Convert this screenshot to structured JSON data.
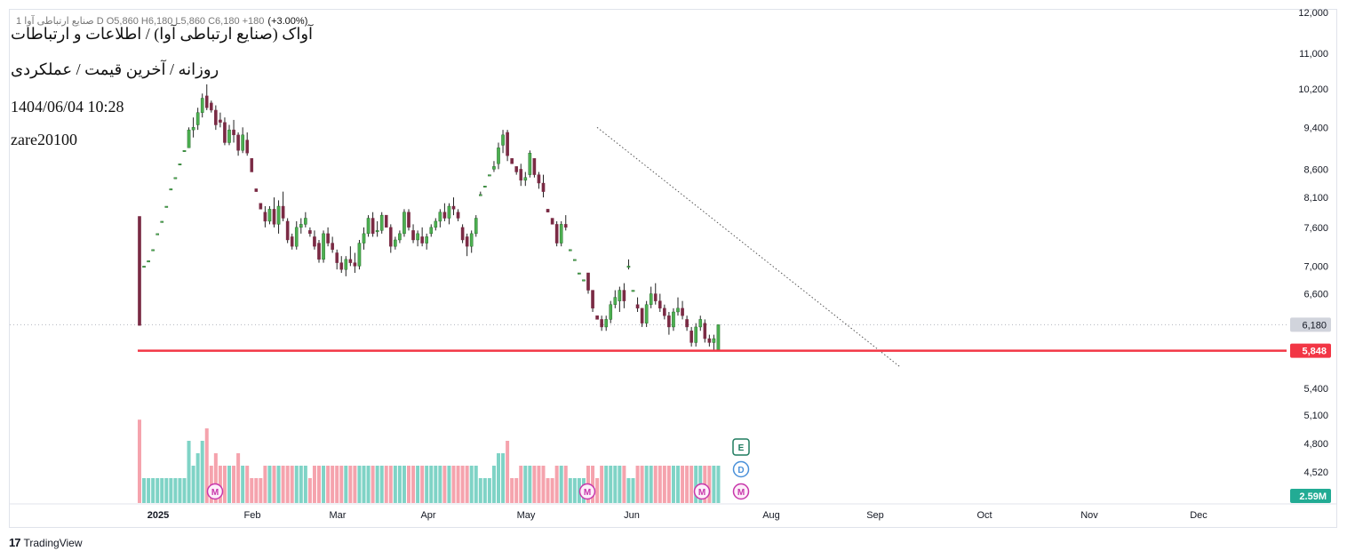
{
  "header": {
    "ohlc_text": "1 صنایع ارتباطی آوا D O5,860 H6,180 L5,860 C6,180 +180",
    "change_text": "(+3.00%)",
    "title_line1": "آواک (صنایع ارتباطی آوا) / اطلاعات و ارتباطات",
    "title_line2": "روزانه / آخرین قیمت / عملکردی",
    "datetime": "1404/06/04 10:28",
    "author": "zare20100"
  },
  "branding": {
    "logo_text": "17",
    "name": "TradingView"
  },
  "colors": {
    "up": "#26a69a",
    "down": "#7a2a44",
    "up_candle": "#4caf50",
    "vol_up": "#7fd3c6",
    "vol_down": "#f5a3ad",
    "support": "#f23645",
    "last_price_bg": "#d1d4dc",
    "volume_badge": "#22ab94",
    "marker_m": "#c837ab",
    "marker_e": "#1e7b5f",
    "marker_d": "#4a90d9"
  },
  "chart_data": {
    "type": "candlestick",
    "title": "آواک (صنایع ارتباطی آوا) / اطلاعات و ارتباطات",
    "y_axis": {
      "scale": "log",
      "ylim": [
        4200,
        12200
      ],
      "ticks": [
        "12,000",
        "11,000",
        "10,200",
        "9,400",
        "8,600",
        "8,100",
        "7,600",
        "7,000",
        "6,600",
        "6,180",
        "5,848",
        "5,400",
        "5,100",
        "4,800",
        "4,520"
      ],
      "tick_values": [
        12000,
        11000,
        10200,
        9400,
        8600,
        8100,
        7600,
        7000,
        6600,
        6180,
        5848,
        5400,
        5100,
        4800,
        4520
      ]
    },
    "x_axis": {
      "labels": [
        "2025",
        "Feb",
        "Mar",
        "Apr",
        "May",
        "Jun",
        "Aug",
        "Sep",
        "Oct",
        "Nov",
        "Dec"
      ]
    },
    "last_price": {
      "value": 6180,
      "label": "6,180"
    },
    "support_line": {
      "value": 5848,
      "label": "5,848"
    },
    "volume_label": "2.59M",
    "candles": [
      [
        7780,
        7780,
        6170,
        6170,
        10
      ],
      [
        7000,
        7000,
        7000,
        7000,
        2
      ],
      [
        7080,
        7080,
        7080,
        7080,
        2
      ],
      [
        7250,
        7250,
        7250,
        7250,
        2
      ],
      [
        7500,
        7500,
        7500,
        7500,
        2
      ],
      [
        7700,
        7700,
        7700,
        7700,
        2
      ],
      [
        7950,
        7950,
        7950,
        7950,
        2
      ],
      [
        8250,
        8250,
        8250,
        8250,
        2
      ],
      [
        8450,
        8450,
        8450,
        8450,
        2
      ],
      [
        8700,
        8700,
        8700,
        8700,
        2
      ],
      [
        8950,
        8950,
        8950,
        8950,
        2
      ],
      [
        9000,
        9400,
        9000,
        9350,
        5
      ],
      [
        9350,
        9600,
        9200,
        9400,
        3
      ],
      [
        9450,
        9800,
        9350,
        9700,
        4
      ],
      [
        9700,
        10100,
        9600,
        10000,
        5
      ],
      [
        10050,
        10300,
        9750,
        9800,
        6
      ],
      [
        9900,
        9950,
        9700,
        9750,
        3
      ],
      [
        9750,
        9850,
        9350,
        9450,
        4
      ],
      [
        9550,
        9700,
        9400,
        9500,
        3
      ],
      [
        9500,
        9600,
        9050,
        9100,
        3
      ],
      [
        9100,
        9450,
        9050,
        9350,
        3
      ],
      [
        9350,
        9550,
        9100,
        9250,
        3
      ],
      [
        9250,
        9300,
        8850,
        8950,
        4
      ],
      [
        8950,
        9400,
        8900,
        9250,
        3
      ],
      [
        9150,
        9300,
        8850,
        8900,
        3
      ],
      [
        8800,
        8800,
        8550,
        8550,
        2
      ],
      [
        8250,
        8250,
        8200,
        8200,
        2
      ],
      [
        8000,
        8000,
        7900,
        7900,
        2
      ],
      [
        7850,
        7950,
        7600,
        7700,
        3
      ],
      [
        7700,
        7950,
        7650,
        7900,
        3
      ],
      [
        7900,
        8100,
        7600,
        7650,
        3
      ],
      [
        7650,
        8050,
        7500,
        7950,
        3
      ],
      [
        7950,
        8200,
        7700,
        7750,
        3
      ],
      [
        7700,
        7750,
        7350,
        7400,
        3
      ],
      [
        7450,
        7500,
        7250,
        7300,
        3
      ],
      [
        7300,
        7700,
        7250,
        7600,
        3
      ],
      [
        7600,
        7750,
        7500,
        7650,
        3
      ],
      [
        7650,
        7850,
        7600,
        7750,
        3
      ],
      [
        7550,
        7600,
        7450,
        7500,
        2
      ],
      [
        7450,
        7550,
        7250,
        7300,
        3
      ],
      [
        7350,
        7400,
        7050,
        7100,
        3
      ],
      [
        7100,
        7550,
        7050,
        7500,
        3
      ],
      [
        7500,
        7600,
        7300,
        7350,
        3
      ],
      [
        7350,
        7450,
        7200,
        7250,
        3
      ],
      [
        7200,
        7250,
        6950,
        7050,
        3
      ],
      [
        7050,
        7150,
        6900,
        6950,
        3
      ],
      [
        6950,
        7150,
        6850,
        7100,
        3
      ],
      [
        7100,
        7300,
        7000,
        7050,
        3
      ],
      [
        7050,
        7200,
        6900,
        7000,
        3
      ],
      [
        7000,
        7400,
        6950,
        7350,
        3
      ],
      [
        7350,
        7600,
        7250,
        7500,
        3
      ],
      [
        7500,
        7800,
        7450,
        7750,
        3
      ],
      [
        7750,
        7850,
        7450,
        7500,
        3
      ],
      [
        7550,
        7700,
        7450,
        7550,
        3
      ],
      [
        7550,
        7850,
        7500,
        7800,
        3
      ],
      [
        7800,
        7800,
        7600,
        7600,
        3
      ],
      [
        7600,
        7650,
        7200,
        7300,
        3
      ],
      [
        7300,
        7450,
        7250,
        7400,
        3
      ],
      [
        7400,
        7550,
        7350,
        7500,
        3
      ],
      [
        7500,
        7900,
        7450,
        7850,
        3
      ],
      [
        7850,
        7900,
        7550,
        7600,
        3
      ],
      [
        7550,
        7650,
        7350,
        7400,
        3
      ],
      [
        7400,
        7550,
        7300,
        7500,
        3
      ],
      [
        7450,
        7600,
        7300,
        7350,
        3
      ],
      [
        7350,
        7500,
        7250,
        7450,
        3
      ],
      [
        7500,
        7650,
        7450,
        7600,
        3
      ],
      [
        7600,
        7750,
        7550,
        7700,
        3
      ],
      [
        7700,
        7900,
        7600,
        7850,
        3
      ],
      [
        7850,
        8000,
        7700,
        7750,
        3
      ],
      [
        7750,
        8000,
        7650,
        7950,
        3
      ],
      [
        7950,
        8100,
        7800,
        7900,
        3
      ],
      [
        7850,
        7900,
        7700,
        7750,
        3
      ],
      [
        7600,
        7650,
        7350,
        7400,
        3
      ],
      [
        7450,
        7500,
        7150,
        7300,
        3
      ],
      [
        7300,
        7550,
        7200,
        7500,
        3
      ],
      [
        7500,
        7800,
        7450,
        7750,
        3
      ],
      [
        8150,
        8200,
        8150,
        8150,
        2
      ],
      [
        8300,
        8300,
        8300,
        8300,
        2
      ],
      [
        8500,
        8500,
        8500,
        8500,
        2
      ],
      [
        8600,
        8750,
        8550,
        8650,
        3
      ],
      [
        8700,
        9100,
        8600,
        9000,
        4
      ],
      [
        9050,
        9350,
        8900,
        9250,
        4
      ],
      [
        9300,
        9350,
        8750,
        8850,
        5
      ],
      [
        8800,
        8800,
        8700,
        8700,
        2
      ],
      [
        8650,
        8650,
        8500,
        8550,
        2
      ],
      [
        8600,
        8700,
        8300,
        8400,
        3
      ],
      [
        8400,
        8550,
        8300,
        8450,
        3
      ],
      [
        8500,
        8950,
        8450,
        8900,
        3
      ],
      [
        8800,
        8800,
        8450,
        8500,
        3
      ],
      [
        8500,
        8550,
        8250,
        8350,
        3
      ],
      [
        8350,
        8500,
        8100,
        8200,
        3
      ],
      [
        7900,
        7900,
        7850,
        7850,
        2
      ],
      [
        7750,
        7750,
        7650,
        7650,
        2
      ],
      [
        7650,
        7700,
        7300,
        7350,
        3
      ],
      [
        7350,
        7700,
        7300,
        7650,
        3
      ],
      [
        7650,
        7800,
        7550,
        7600,
        3
      ],
      [
        7250,
        7250,
        7250,
        7250,
        2
      ],
      [
        7100,
        7100,
        7100,
        7100,
        2
      ],
      [
        6900,
        6900,
        6900,
        6900,
        2
      ],
      [
        6800,
        6800,
        6800,
        6800,
        2
      ],
      [
        6900,
        6900,
        6600,
        6650,
        3
      ],
      [
        6650,
        6650,
        6350,
        6400,
        3
      ],
      [
        6300,
        6300,
        6250,
        6250,
        2
      ],
      [
        6250,
        6300,
        6100,
        6150,
        3
      ],
      [
        6150,
        6300,
        6100,
        6250,
        3
      ],
      [
        6250,
        6500,
        6200,
        6450,
        3
      ],
      [
        6450,
        6650,
        6400,
        6550,
        3
      ],
      [
        6500,
        6700,
        6350,
        6650,
        3
      ],
      [
        6650,
        6750,
        6400,
        6500,
        3
      ],
      [
        7000,
        7100,
        6950,
        7000,
        2
      ],
      [
        6650,
        6650,
        6650,
        6650,
        2
      ],
      [
        6450,
        6550,
        6350,
        6400,
        3
      ],
      [
        6400,
        6400,
        6150,
        6200,
        3
      ],
      [
        6200,
        6500,
        6150,
        6450,
        3
      ],
      [
        6450,
        6700,
        6400,
        6600,
        3
      ],
      [
        6600,
        6750,
        6450,
        6500,
        3
      ],
      [
        6500,
        6600,
        6350,
        6400,
        3
      ],
      [
        6400,
        6450,
        6250,
        6300,
        3
      ],
      [
        6300,
        6350,
        6050,
        6150,
        3
      ],
      [
        6150,
        6400,
        6100,
        6350,
        3
      ],
      [
        6350,
        6550,
        6300,
        6400,
        3
      ],
      [
        6400,
        6500,
        6250,
        6300,
        3
      ],
      [
        6250,
        6300,
        6100,
        6150,
        3
      ],
      [
        6100,
        6150,
        5900,
        5950,
        3
      ],
      [
        5950,
        6200,
        5900,
        6150,
        3
      ],
      [
        6150,
        6300,
        6100,
        6250,
        3
      ],
      [
        6200,
        6250,
        5950,
        6000,
        3
      ],
      [
        6000,
        6050,
        5900,
        5950,
        3
      ],
      [
        5950,
        6050,
        5860,
        6000,
        3
      ],
      [
        5860,
        6180,
        5860,
        6180,
        3
      ]
    ],
    "markers": [
      {
        "type": "M",
        "label": "M",
        "category_label": "Feb"
      },
      {
        "type": "M",
        "label": "M",
        "category_label": "May"
      },
      {
        "type": "M",
        "label": "M",
        "category_label": "Jun"
      },
      {
        "type": "M",
        "label": "M",
        "category_label": "Jun"
      },
      {
        "type": "E",
        "label": "E",
        "category_label": "Jun"
      },
      {
        "type": "D",
        "label": "D",
        "category_label": "Jun"
      }
    ],
    "trendline": {
      "style": "dotted",
      "from_price": 9400,
      "to_price": 5650
    }
  }
}
